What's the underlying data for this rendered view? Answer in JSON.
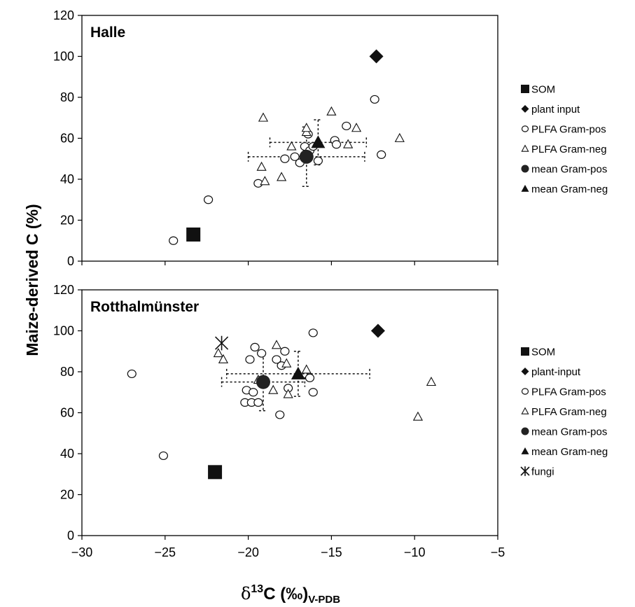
{
  "y_axis_label": "Maize-derived C (%)",
  "x_axis_label": {
    "delta": "δ",
    "superscript": "13",
    "main": "C (‰)",
    "subscript": "V-PDB"
  },
  "chart_data": [
    {
      "type": "scatter",
      "title": "Halle",
      "xlim": [
        -30,
        -5
      ],
      "ylim": [
        0,
        120
      ],
      "x_ticks": [
        -30,
        -25,
        -20,
        -15,
        -10,
        -5
      ],
      "y_ticks": [
        0,
        20,
        40,
        60,
        80,
        100,
        120
      ],
      "legend_position": "right",
      "series": [
        {
          "name": "SOM",
          "marker": "filled-square",
          "points": [
            [
              -23.3,
              13
            ]
          ]
        },
        {
          "name": "plant input",
          "marker": "filled-diamond",
          "points": [
            [
              -12.3,
              100
            ]
          ]
        },
        {
          "name": "PLFA Gram-pos",
          "marker": "open-circle",
          "points": [
            [
              -24.5,
              10
            ],
            [
              -22.4,
              30
            ],
            [
              -19.4,
              38
            ],
            [
              -17.8,
              50
            ],
            [
              -17.2,
              51
            ],
            [
              -16.9,
              48
            ],
            [
              -16.6,
              56
            ],
            [
              -16.4,
              62
            ],
            [
              -16.3,
              54
            ],
            [
              -16.1,
              56
            ],
            [
              -15.8,
              49
            ],
            [
              -14.8,
              59
            ],
            [
              -14.7,
              57
            ],
            [
              -14.1,
              66
            ],
            [
              -12.4,
              79
            ],
            [
              -12.0,
              52
            ]
          ]
        },
        {
          "name": "PLFA Gram-neg",
          "marker": "open-triangle",
          "points": [
            [
              -19.1,
              70
            ],
            [
              -19.2,
              46
            ],
            [
              -19.0,
              39
            ],
            [
              -18.0,
              41
            ],
            [
              -17.4,
              56
            ],
            [
              -16.5,
              63
            ],
            [
              -16.5,
              65
            ],
            [
              -15.0,
              73
            ],
            [
              -14.0,
              57
            ],
            [
              -13.5,
              65
            ],
            [
              -10.9,
              60
            ]
          ]
        },
        {
          "name": "mean Gram-pos",
          "marker": "filled-circle",
          "points": [
            [
              -16.5,
              51
            ]
          ],
          "error_x": [
            3.5
          ],
          "error_y": [
            14.5
          ]
        },
        {
          "name": "mean Gram-neg",
          "marker": "filled-triangle",
          "points": [
            [
              -15.8,
              58
            ]
          ],
          "error_x": [
            2.9
          ],
          "error_y": [
            11
          ]
        }
      ]
    },
    {
      "type": "scatter",
      "title": "Rotthalmünster",
      "xlim": [
        -30,
        -5
      ],
      "ylim": [
        0,
        120
      ],
      "x_ticks": [
        -30,
        -25,
        -20,
        -15,
        -10,
        -5
      ],
      "x_tick_labels": [
        "−30",
        "−25",
        "−20",
        "−15",
        "−10",
        "−5"
      ],
      "y_ticks": [
        0,
        20,
        40,
        60,
        80,
        100,
        120
      ],
      "legend_position": "right",
      "series": [
        {
          "name": "SOM",
          "marker": "filled-square",
          "points": [
            [
              -22.0,
              31
            ]
          ]
        },
        {
          "name": "plant-input",
          "marker": "filled-diamond",
          "points": [
            [
              -12.2,
              100
            ]
          ]
        },
        {
          "name": "PLFA Gram-pos",
          "marker": "open-circle",
          "points": [
            [
              -27.0,
              79
            ],
            [
              -25.1,
              39
            ],
            [
              -20.2,
              65
            ],
            [
              -20.1,
              71
            ],
            [
              -19.9,
              86
            ],
            [
              -19.8,
              65
            ],
            [
              -19.7,
              70
            ],
            [
              -19.6,
              92
            ],
            [
              -19.4,
              65
            ],
            [
              -19.2,
              89
            ],
            [
              -18.3,
              86
            ],
            [
              -18.0,
              83
            ],
            [
              -18.1,
              59
            ],
            [
              -17.8,
              90
            ],
            [
              -17.6,
              72
            ],
            [
              -16.3,
              77
            ],
            [
              -16.1,
              70
            ],
            [
              -16.1,
              99
            ]
          ]
        },
        {
          "name": "PLFA Gram-neg",
          "marker": "open-triangle",
          "points": [
            [
              -21.8,
              89
            ],
            [
              -21.5,
              86
            ],
            [
              -19.4,
              76
            ],
            [
              -18.5,
              71
            ],
            [
              -18.3,
              93
            ],
            [
              -17.7,
              84
            ],
            [
              -17.6,
              69
            ],
            [
              -16.5,
              81
            ],
            [
              -9.8,
              58
            ],
            [
              -9.0,
              75
            ]
          ]
        },
        {
          "name": "mean Gram-pos",
          "marker": "filled-circle",
          "points": [
            [
              -19.1,
              75
            ]
          ],
          "error_x": [
            2.5
          ],
          "error_y": [
            14
          ]
        },
        {
          "name": "mean Gram-neg",
          "marker": "filled-triangle",
          "points": [
            [
              -17.0,
              79
            ]
          ],
          "error_x": [
            4.3
          ],
          "error_y": [
            11
          ]
        },
        {
          "name": "fungi",
          "marker": "asterisk",
          "points": [
            [
              -21.6,
              94
            ]
          ]
        }
      ]
    }
  ]
}
